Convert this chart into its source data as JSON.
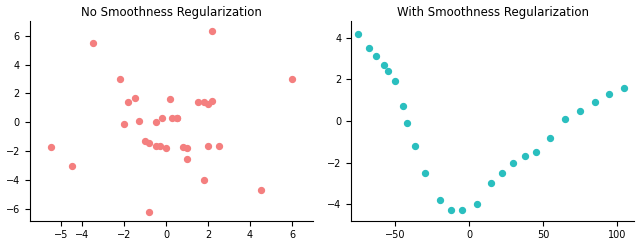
{
  "title1": "No Smoothness Regularization",
  "title2": "With Smoothness Regularization",
  "scatter_x": [
    -5.5,
    -4.5,
    -3.5,
    -2.0,
    -2.2,
    -1.8,
    -1.5,
    -1.3,
    -1.0,
    -0.8,
    -0.5,
    -0.2,
    0.0,
    0.2,
    0.5,
    0.8,
    1.0,
    1.5,
    1.8,
    2.0,
    2.2,
    2.5,
    2.0,
    1.8,
    0.5,
    0.3,
    -0.3,
    -0.5,
    1.0,
    4.5,
    6.0,
    2.2,
    -0.8
  ],
  "scatter_y": [
    -1.7,
    -3.0,
    5.5,
    -0.1,
    3.0,
    1.4,
    1.7,
    0.1,
    -1.3,
    -1.4,
    0.0,
    0.3,
    -1.8,
    1.6,
    0.3,
    -1.7,
    -2.5,
    1.4,
    1.4,
    1.3,
    6.3,
    -1.6,
    -1.6,
    -4.0,
    0.3,
    0.3,
    -1.6,
    -1.6,
    -1.8,
    -4.7,
    3.0,
    1.5,
    -6.2
  ],
  "scatter_color": "#f47f7f",
  "smooth_x": [
    -75,
    -68,
    -63,
    -58,
    -55,
    -50,
    -45,
    -42,
    -37,
    -30,
    -20,
    -12,
    -5,
    5,
    15,
    22,
    30,
    38,
    45,
    55,
    65,
    75,
    85,
    95,
    105
  ],
  "smooth_y": [
    4.2,
    3.5,
    3.1,
    2.7,
    2.4,
    1.9,
    0.7,
    -0.1,
    -1.2,
    -2.5,
    -3.8,
    -4.3,
    -4.3,
    -4.0,
    -3.0,
    -2.5,
    -2.0,
    -1.7,
    -1.5,
    -0.8,
    0.1,
    0.5,
    0.9,
    1.3,
    1.6
  ],
  "smooth_color": "#2abfbf",
  "xlim1": [
    -6.5,
    7.0
  ],
  "ylim1": [
    -6.8,
    7.0
  ],
  "xlim2": [
    -80,
    112
  ],
  "ylim2": [
    -4.8,
    4.8
  ],
  "marker_size": 18,
  "background_color": "#ffffff",
  "title_fontsize": 8.5,
  "tick_fontsize": 7,
  "xticks1": [
    -5,
    -4,
    -2,
    0,
    2,
    4,
    6
  ],
  "yticks1": [
    -6,
    -4,
    -2,
    0,
    2,
    4,
    6
  ],
  "xticks2": [
    -50,
    0,
    50,
    100
  ],
  "yticks2": [
    -4,
    -2,
    0,
    2,
    4
  ]
}
